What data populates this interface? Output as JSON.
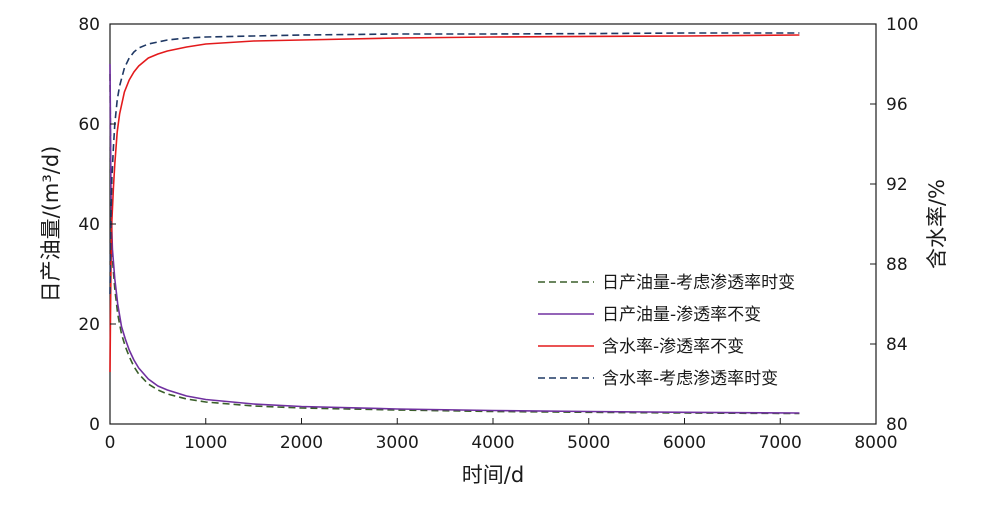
{
  "chart_data": {
    "type": "line",
    "xlabel": "时间/d",
    "ylabel_left": "日产油量/(m³/d)",
    "ylabel_right": "含水率/%",
    "xlim": [
      0,
      8000
    ],
    "ylim_left": [
      0,
      80
    ],
    "ylim_right": [
      80,
      100
    ],
    "x_ticks": [
      "0",
      "1000",
      "2000",
      "3000",
      "4000",
      "5000",
      "6000",
      "7000",
      "8000"
    ],
    "y_left_ticks": [
      "0",
      "20",
      "40",
      "60",
      "80"
    ],
    "y_right_ticks": [
      "80",
      "84",
      "88",
      "92",
      "96",
      "100"
    ],
    "grid": false,
    "legend_position": "lower-right",
    "series": [
      {
        "name": "日产油量-考虑渗透率时变",
        "axis": "left",
        "color": "#3a5f2a",
        "dash": "dashed",
        "x": [
          0,
          10,
          25,
          50,
          80,
          120,
          160,
          200,
          250,
          300,
          400,
          500,
          600,
          800,
          1000,
          1500,
          2000,
          3000,
          4000,
          5000,
          6000,
          7200
        ],
        "y": [
          70,
          42,
          33,
          27,
          22,
          18,
          15.5,
          13.5,
          11.5,
          10,
          8,
          6.8,
          6,
          5,
          4.4,
          3.6,
          3.2,
          2.8,
          2.5,
          2.35,
          2.2,
          2.1
        ]
      },
      {
        "name": "日产油量-渗透率不变",
        "axis": "left",
        "color": "#7030a0",
        "dash": "solid",
        "x": [
          0,
          10,
          25,
          50,
          80,
          120,
          160,
          200,
          250,
          300,
          400,
          500,
          600,
          800,
          1000,
          1500,
          2000,
          3000,
          4000,
          5000,
          6000,
          7200
        ],
        "y": [
          72,
          45,
          35,
          29,
          24,
          19.5,
          17,
          14.8,
          12.8,
          11.2,
          9,
          7.6,
          6.8,
          5.6,
          4.9,
          4.0,
          3.5,
          3.0,
          2.7,
          2.5,
          2.35,
          2.2
        ]
      },
      {
        "name": "含水率-渗透率不变",
        "axis": "right",
        "color": "#e31a1c",
        "dash": "solid",
        "x": [
          0,
          5,
          10,
          20,
          35,
          50,
          75,
          100,
          150,
          200,
          250,
          300,
          400,
          500,
          600,
          800,
          1000,
          1500,
          2000,
          3000,
          4000,
          5000,
          6000,
          7200
        ],
        "y": [
          82.6,
          85.5,
          88.0,
          90.2,
          91.8,
          93.0,
          94.6,
          95.5,
          96.6,
          97.2,
          97.6,
          97.9,
          98.3,
          98.5,
          98.65,
          98.85,
          99.0,
          99.15,
          99.2,
          99.3,
          99.35,
          99.38,
          99.4,
          99.45
        ]
      },
      {
        "name": "含水率-考虑渗透率时变",
        "axis": "right",
        "color": "#1f3864",
        "dash": "dashed",
        "x": [
          0,
          5,
          10,
          20,
          35,
          50,
          75,
          100,
          150,
          200,
          250,
          300,
          400,
          500,
          600,
          800,
          1000,
          1500,
          2000,
          3000,
          4000,
          5000,
          6000,
          7200
        ],
        "y": [
          86.5,
          88.5,
          90.5,
          92.3,
          93.8,
          95.0,
          96.2,
          96.9,
          97.8,
          98.3,
          98.6,
          98.8,
          99.0,
          99.1,
          99.2,
          99.3,
          99.35,
          99.4,
          99.45,
          99.5,
          99.5,
          99.52,
          99.55,
          99.55
        ]
      }
    ],
    "legend_order": [
      0,
      1,
      2,
      3
    ]
  }
}
